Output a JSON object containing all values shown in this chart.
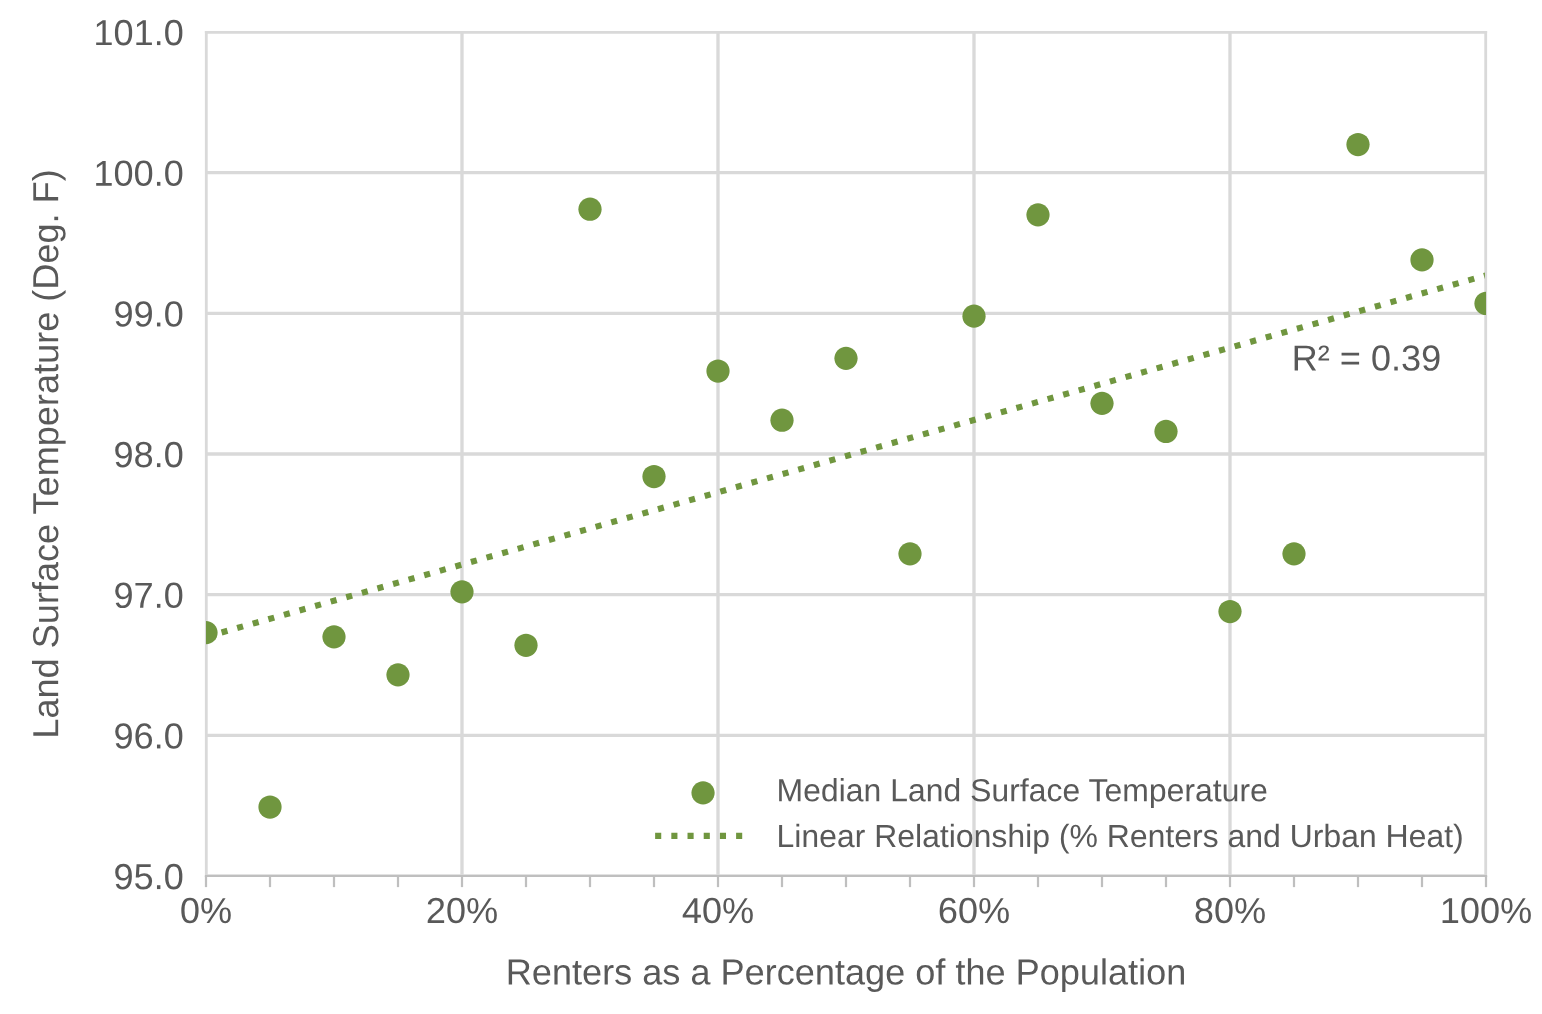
{
  "chart_data": {
    "type": "scatter",
    "xlabel": "Renters as a Percentage of the Population",
    "ylabel": "Land Surface Temperature (Deg. F)",
    "xlim": [
      0,
      100
    ],
    "ylim": [
      95.0,
      101.0
    ],
    "xticks": [
      {
        "value": 0,
        "label": "0%"
      },
      {
        "value": 5,
        "label": null
      },
      {
        "value": 10,
        "label": null
      },
      {
        "value": 15,
        "label": null
      },
      {
        "value": 20,
        "label": "20%"
      },
      {
        "value": 25,
        "label": null
      },
      {
        "value": 30,
        "label": null
      },
      {
        "value": 35,
        "label": null
      },
      {
        "value": 40,
        "label": "40%"
      },
      {
        "value": 45,
        "label": null
      },
      {
        "value": 50,
        "label": null
      },
      {
        "value": 55,
        "label": null
      },
      {
        "value": 60,
        "label": "60%"
      },
      {
        "value": 65,
        "label": null
      },
      {
        "value": 70,
        "label": null
      },
      {
        "value": 75,
        "label": null
      },
      {
        "value": 80,
        "label": "80%"
      },
      {
        "value": 85,
        "label": null
      },
      {
        "value": 90,
        "label": null
      },
      {
        "value": 95,
        "label": null
      },
      {
        "value": 100,
        "label": "100%"
      }
    ],
    "yticks": [
      {
        "value": 95,
        "label": "95.0"
      },
      {
        "value": 96,
        "label": "96.0"
      },
      {
        "value": 97,
        "label": "97.0"
      },
      {
        "value": 98,
        "label": "98.0"
      },
      {
        "value": 99,
        "label": "99.0"
      },
      {
        "value": 100,
        "label": "100.0"
      },
      {
        "value": 101,
        "label": "101.0"
      }
    ],
    "grid": true,
    "legend": "bottom right",
    "series": [
      {
        "name": "Median Land Surface Temperature",
        "marker": "circle",
        "color": "#70963f",
        "x": [
          0,
          5,
          10,
          15,
          20,
          25,
          30,
          35,
          40,
          45,
          50,
          55,
          60,
          65,
          70,
          75,
          80,
          85,
          90,
          95,
          100
        ],
        "values": [
          96.73,
          95.49,
          96.7,
          96.43,
          97.02,
          96.64,
          99.74,
          97.84,
          98.59,
          98.24,
          98.68,
          97.29,
          98.98,
          99.7,
          98.36,
          98.16,
          96.88,
          97.29,
          100.2,
          99.38,
          99.07
        ]
      },
      {
        "name": "Linear Relationship (% Renters and Urban Heat)",
        "type": "line",
        "line_style": "dotted",
        "color": "#70963f",
        "x": [
          0,
          100
        ],
        "values": [
          96.7,
          99.27
        ]
      }
    ],
    "annotations": [
      "R² = 0.39"
    ]
  }
}
